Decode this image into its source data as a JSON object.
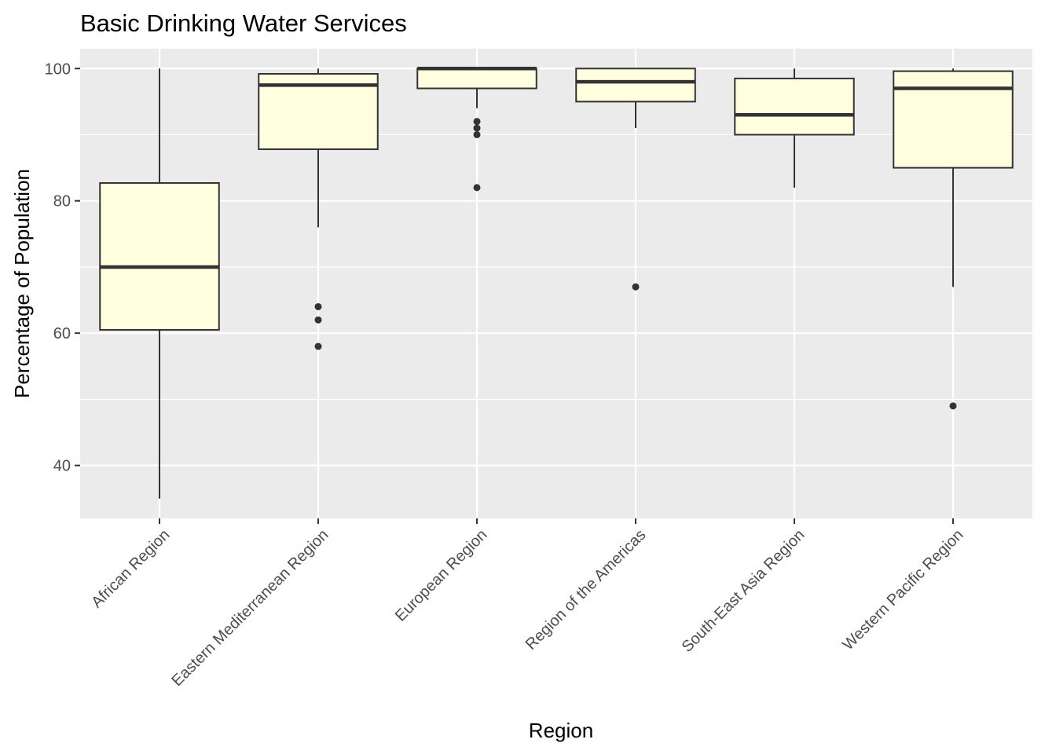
{
  "chart_data": {
    "type": "boxplot",
    "title": "Basic Drinking Water Services",
    "xlabel": "Region",
    "ylabel": "Percentage of Population",
    "ylim": [
      32,
      103
    ],
    "yticks": [
      40,
      60,
      80,
      100
    ],
    "grid": true,
    "legend": "none",
    "colors": {
      "panel": "#ebebeb",
      "gridline": "#ffffff",
      "box_fill": "#ffffe0",
      "box_stroke": "#333333",
      "median": "#333333",
      "outlier": "#333333",
      "tick": "#333333"
    },
    "categories": [
      "African Region",
      "Eastern Mediterranean Region",
      "European Region",
      "Region of the Americas",
      "South-East Asia Region",
      "Western Pacific Region"
    ],
    "boxes": [
      {
        "min": 35,
        "q1": 60.5,
        "median": 70,
        "q3": 82.7,
        "max": 100,
        "outliers": []
      },
      {
        "min": 76,
        "q1": 87.8,
        "median": 97.5,
        "q3": 99.2,
        "max": 100,
        "outliers": [
          64,
          62,
          58
        ]
      },
      {
        "min": 94,
        "q1": 97,
        "median": 100,
        "q3": 100,
        "max": 100,
        "outliers": [
          92,
          91,
          90,
          82
        ]
      },
      {
        "min": 91,
        "q1": 95,
        "median": 98,
        "q3": 100,
        "max": 100,
        "outliers": [
          67
        ]
      },
      {
        "min": 82,
        "q1": 90,
        "median": 93,
        "q3": 98.5,
        "max": 100,
        "outliers": []
      },
      {
        "min": 67,
        "q1": 85,
        "median": 97,
        "q3": 99.6,
        "max": 100,
        "outliers": [
          49
        ]
      }
    ]
  }
}
